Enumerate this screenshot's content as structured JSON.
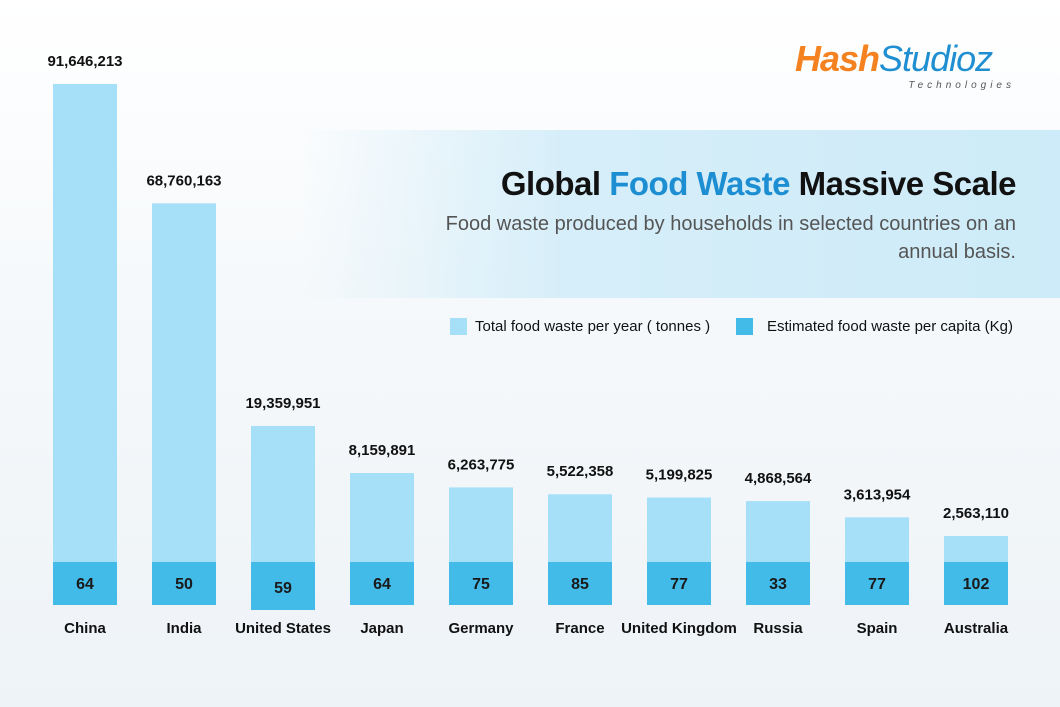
{
  "brand": {
    "name_part1": "Hash",
    "name_part2": "Studioz",
    "tagline": "Technologies",
    "color_orange": "#f58220",
    "color_blue": "#1f8fd1"
  },
  "header": {
    "title_prefix": "Global ",
    "title_highlight": "Food Waste",
    "title_suffix": " Massive Scale",
    "subtitle": "Food waste produced by households in selected countries on an annual basis."
  },
  "colors": {
    "total_bar": "#a6e0f8",
    "per_capita_bar": "#43bbe8",
    "highlight": "#1d8ed2"
  },
  "chart_data": {
    "type": "bar",
    "title": "Global Food Waste Massive Scale",
    "categories": [
      "China",
      "India",
      "United States",
      "Japan",
      "Germany",
      "France",
      "United Kingdom",
      "Russia",
      "Spain",
      "Australia"
    ],
    "series": [
      {
        "name": "Total food waste per year ( tonnes )",
        "values": [
          91646213,
          68760163,
          19359951,
          8159891,
          6263775,
          5522358,
          5199825,
          4868564,
          3613954,
          2563110
        ],
        "labels": [
          "91,646,213",
          "68,760,163",
          "19,359,951",
          "8,159,891",
          "6,263,775",
          "5,522,358",
          "5,199,825",
          "4,868,564",
          "3,613,954",
          "2,563,110"
        ]
      },
      {
        "name": "Estimated food waste per capita (Kg)",
        "values": [
          64,
          50,
          59,
          64,
          75,
          85,
          77,
          33,
          77,
          102
        ]
      }
    ],
    "legend_position": "top-right",
    "grid": false
  }
}
